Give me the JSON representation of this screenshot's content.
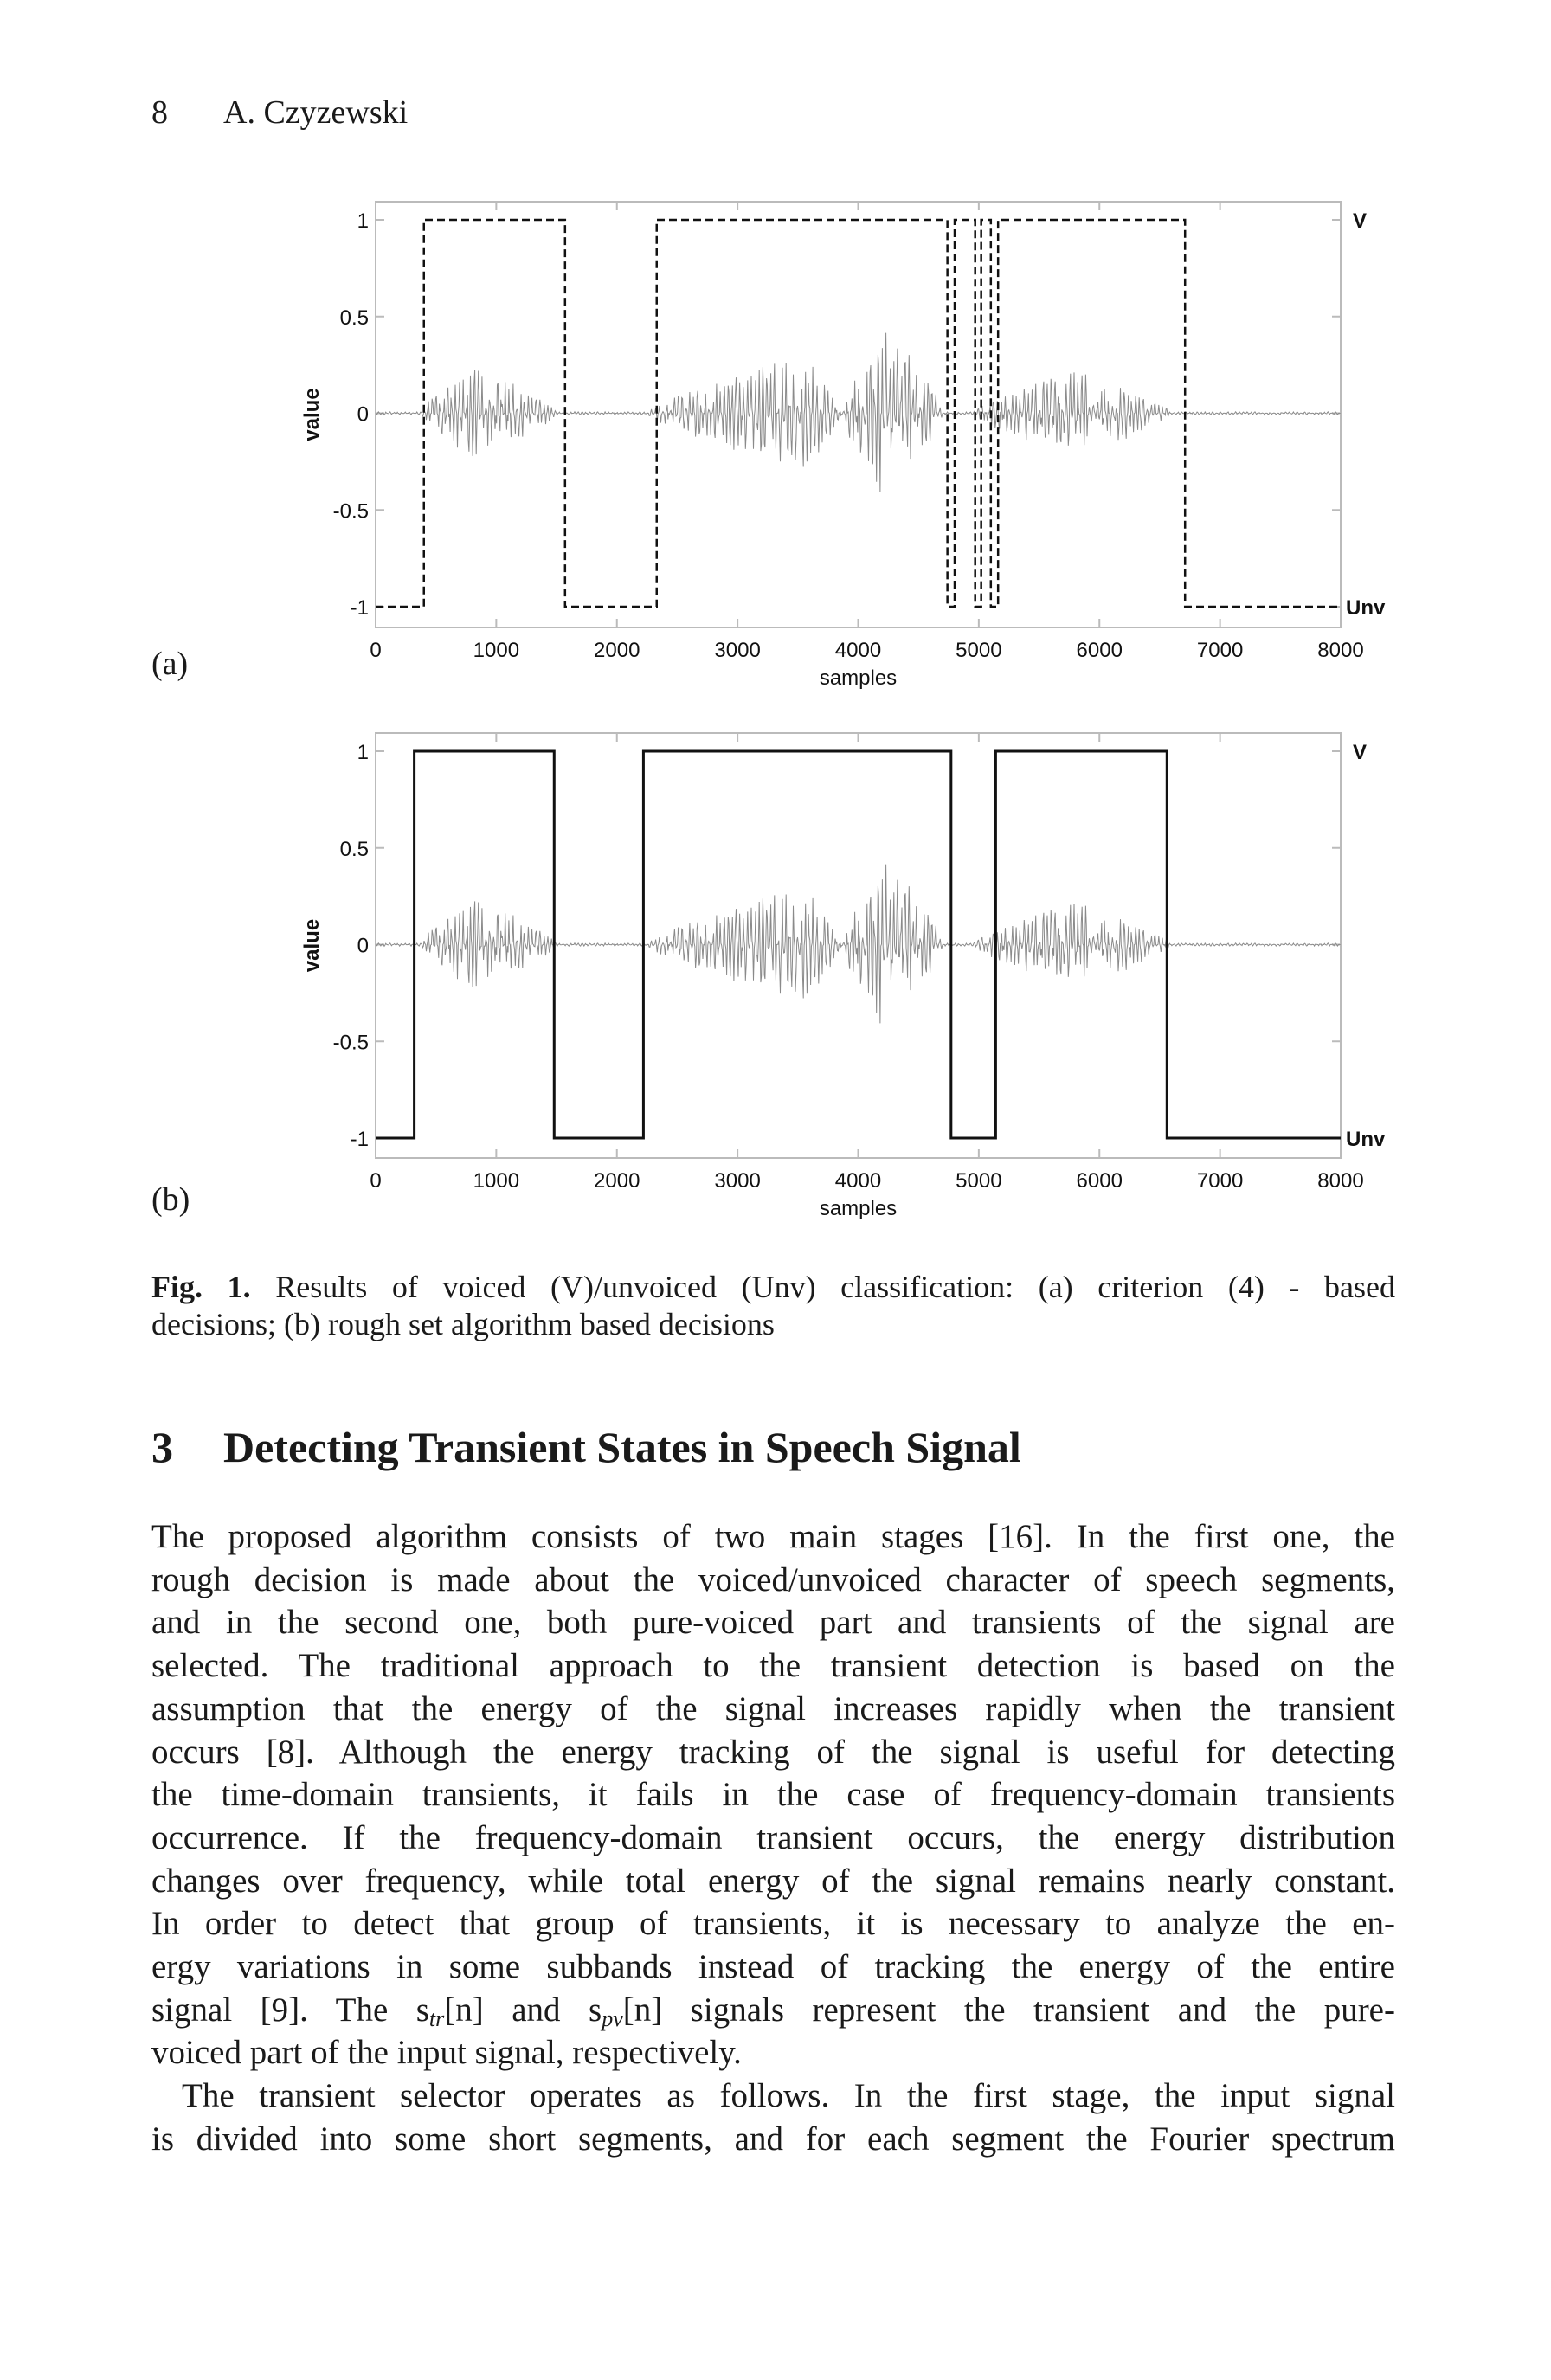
{
  "header": {
    "page_number": "8",
    "author": "A. Czyzewski"
  },
  "figure": {
    "panel_labels": [
      "(a)",
      "(b)"
    ],
    "caption_label": "Fig. 1.",
    "caption_lines": [
      "Results of voiced (V)/unvoiced (Unv) classification: (a) criterion (4) - based",
      "decisions; (b) rough set algorithm based decisions"
    ]
  },
  "chart_data": [
    {
      "type": "line",
      "panel": "(a)",
      "xlabel": "samples",
      "ylabel": "value",
      "xlim": [
        0,
        8000
      ],
      "ylim": [
        -1.1,
        1.1
      ],
      "x_ticks": [
        "0",
        "1000",
        "2000",
        "3000",
        "4000",
        "5000",
        "6000",
        "7000",
        "8000"
      ],
      "y_ticks": [
        "1",
        "0.5",
        "0",
        "-0.5",
        "-1"
      ],
      "right_labels": {
        "top": "V",
        "bottom": "Unv"
      },
      "decision_style": "dashed",
      "decision_steps": [
        {
          "from": 0,
          "to": 400,
          "value": -1
        },
        {
          "from": 400,
          "to": 1570,
          "value": 1
        },
        {
          "from": 1570,
          "to": 2330,
          "value": -1
        },
        {
          "from": 2330,
          "to": 4740,
          "value": 1
        },
        {
          "from": 4740,
          "to": 4800,
          "value": -1
        },
        {
          "from": 4800,
          "to": 4970,
          "value": 1
        },
        {
          "from": 4970,
          "to": 5020,
          "value": -1
        },
        {
          "from": 5020,
          "to": 5100,
          "value": 1
        },
        {
          "from": 5100,
          "to": 5160,
          "value": -1
        },
        {
          "from": 5160,
          "to": 6710,
          "value": 1
        },
        {
          "from": 6710,
          "to": 8000,
          "value": -1
        }
      ],
      "grid": false
    },
    {
      "type": "line",
      "panel": "(b)",
      "xlabel": "samples",
      "ylabel": "value",
      "xlim": [
        0,
        8000
      ],
      "ylim": [
        -1.1,
        1.1
      ],
      "x_ticks": [
        "0",
        "1000",
        "2000",
        "3000",
        "4000",
        "5000",
        "6000",
        "7000",
        "8000"
      ],
      "y_ticks": [
        "1",
        "0.5",
        "0",
        "-0.5",
        "-1"
      ],
      "right_labels": {
        "top": "V",
        "bottom": "Unv"
      },
      "decision_style": "solid",
      "decision_steps": [
        {
          "from": 0,
          "to": 320,
          "value": -1
        },
        {
          "from": 320,
          "to": 1480,
          "value": 1
        },
        {
          "from": 1480,
          "to": 2220,
          "value": -1
        },
        {
          "from": 2220,
          "to": 4770,
          "value": 1
        },
        {
          "from": 4770,
          "to": 5140,
          "value": -1
        },
        {
          "from": 5140,
          "to": 6560,
          "value": 1
        },
        {
          "from": 6560,
          "to": 8000,
          "value": -1
        }
      ],
      "grid": false
    }
  ],
  "section": {
    "number": "3",
    "title": "Detecting Transient States in Speech Signal"
  },
  "body_lines": [
    "The proposed algorithm consists of two main stages [16]. In the first one, the",
    "rough decision is made about the voiced/unvoiced character of speech segments,",
    "and in the second one, both pure-voiced part and transients of the signal are",
    "selected. The traditional approach to the transient detection is based on the",
    "assumption that the energy of the signal increases rapidly when the transient",
    "occurs [8]. Although the energy tracking of the signal is useful for detecting",
    "the time-domain transients, it fails in the case of frequency-domain transients",
    "occurrence. If the frequency-domain transient occurs, the energy distribution",
    "changes over frequency, while total energy of the signal remains nearly constant.",
    "In order to detect that group of transients, it is necessary to analyze the en-",
    "ergy variations in some subbands instead of tracking the energy of the entire"
  ],
  "math_line": {
    "p1": "signal [9]. The s",
    "sub1": "tr",
    "p2": "[n] and s",
    "sub2": "pv",
    "p3": "[n] signals represent the transient and the pure-"
  },
  "body_lines_2": [
    "voiced part of the input signal, respectively.",
    "The transient selector operates as follows. In the first stage, the input signal",
    "is divided into some short segments, and for each segment the Fourier spectrum"
  ]
}
